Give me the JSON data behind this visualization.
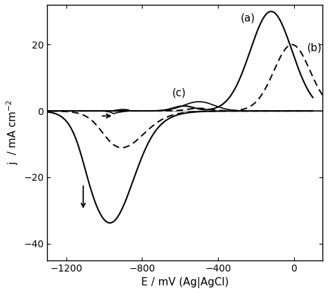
{
  "xlim": [
    -1300,
    150
  ],
  "ylim": [
    -45,
    32
  ],
  "xticks": [
    -1200,
    -800,
    -400,
    0
  ],
  "yticks": [
    -40,
    -20,
    0,
    20
  ],
  "xlabel": "E / mV (Ag|AgCl)",
  "ylabel_display": "j  / mA cm$^{-2}$",
  "bg_color": "#ffffff",
  "line_color": "#000000",
  "label_a": "(a)",
  "label_b": "(b)",
  "label_c": "(c)"
}
